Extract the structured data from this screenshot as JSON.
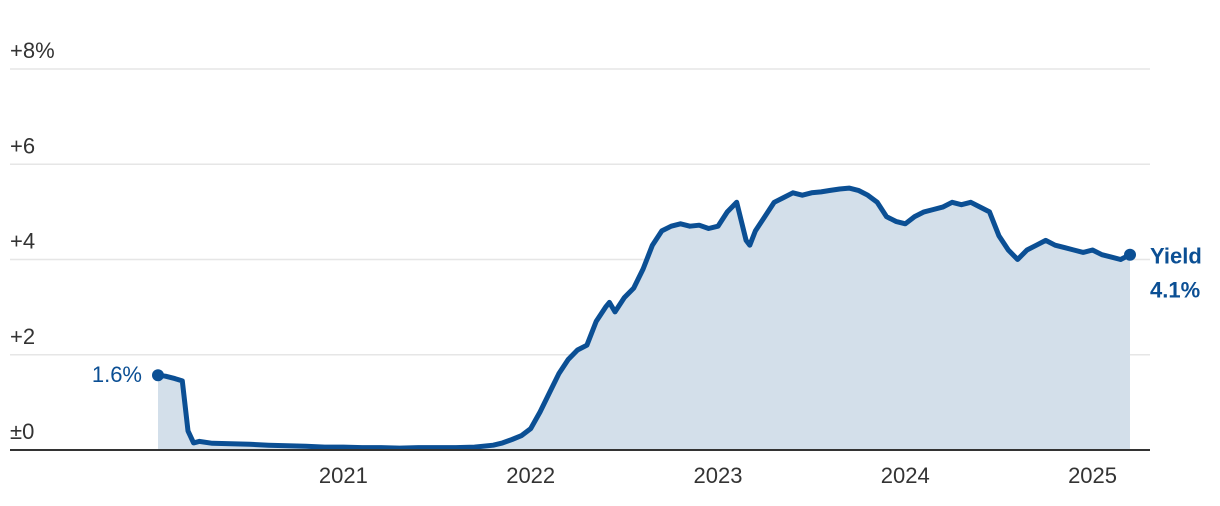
{
  "chart_data": {
    "type": "area",
    "title": "",
    "xlabel": "",
    "ylabel": "",
    "y_unit": "%",
    "ylim": [
      0,
      8
    ],
    "y_ticks": [
      {
        "value": 0,
        "label": "±0"
      },
      {
        "value": 2,
        "label": "+2"
      },
      {
        "value": 4,
        "label": "+4"
      },
      {
        "value": 6,
        "label": "+6"
      },
      {
        "value": 8,
        "label": "+8%"
      }
    ],
    "xlim": [
      2020.0,
      2025.3
    ],
    "x_ticks": [
      {
        "value": 2021,
        "label": "2021"
      },
      {
        "value": 2022,
        "label": "2022"
      },
      {
        "value": 2023,
        "label": "2023"
      },
      {
        "value": 2024,
        "label": "2024"
      },
      {
        "value": 2025,
        "label": "2025"
      }
    ],
    "grid": true,
    "series": [
      {
        "name": "Yield",
        "x": [
          2020.01,
          2020.05,
          2020.1,
          2020.14,
          2020.17,
          2020.2,
          2020.23,
          2020.3,
          2020.4,
          2020.5,
          2020.6,
          2020.7,
          2020.8,
          2020.9,
          2021.0,
          2021.1,
          2021.2,
          2021.3,
          2021.4,
          2021.5,
          2021.6,
          2021.7,
          2021.8,
          2021.85,
          2021.9,
          2021.95,
          2022.0,
          2022.05,
          2022.1,
          2022.15,
          2022.2,
          2022.25,
          2022.3,
          2022.35,
          2022.4,
          2022.42,
          2022.45,
          2022.5,
          2022.55,
          2022.6,
          2022.65,
          2022.7,
          2022.75,
          2022.8,
          2022.85,
          2022.9,
          2022.95,
          2023.0,
          2023.05,
          2023.1,
          2023.15,
          2023.17,
          2023.2,
          2023.25,
          2023.3,
          2023.35,
          2023.4,
          2023.45,
          2023.5,
          2023.55,
          2023.6,
          2023.65,
          2023.7,
          2023.75,
          2023.8,
          2023.85,
          2023.9,
          2023.95,
          2024.0,
          2024.05,
          2024.1,
          2024.15,
          2024.2,
          2024.25,
          2024.3,
          2024.35,
          2024.4,
          2024.45,
          2024.5,
          2024.55,
          2024.6,
          2024.65,
          2024.7,
          2024.75,
          2024.8,
          2024.85,
          2024.9,
          2024.95,
          2025.0,
          2025.05,
          2025.1,
          2025.15,
          2025.2
        ],
        "values": [
          1.57,
          1.55,
          1.5,
          1.45,
          0.4,
          0.15,
          0.18,
          0.14,
          0.13,
          0.12,
          0.1,
          0.09,
          0.08,
          0.06,
          0.06,
          0.05,
          0.05,
          0.04,
          0.05,
          0.05,
          0.05,
          0.06,
          0.1,
          0.15,
          0.22,
          0.3,
          0.45,
          0.8,
          1.2,
          1.6,
          1.9,
          2.1,
          2.2,
          2.7,
          3.0,
          3.1,
          2.9,
          3.2,
          3.4,
          3.8,
          4.3,
          4.6,
          4.7,
          4.75,
          4.7,
          4.72,
          4.65,
          4.7,
          5.0,
          5.2,
          4.4,
          4.3,
          4.6,
          4.9,
          5.2,
          5.3,
          5.4,
          5.35,
          5.4,
          5.42,
          5.45,
          5.48,
          5.5,
          5.45,
          5.35,
          5.2,
          4.9,
          4.8,
          4.75,
          4.9,
          5.0,
          5.05,
          5.1,
          5.2,
          5.15,
          5.2,
          5.1,
          5.0,
          4.5,
          4.2,
          4.0,
          4.2,
          4.3,
          4.4,
          4.3,
          4.25,
          4.2,
          4.15,
          4.2,
          4.1,
          4.05,
          4.0,
          4.1
        ]
      }
    ],
    "start_label": "1.6%",
    "end_label_name": "Yield",
    "end_label_value": "4.1%",
    "colors": {
      "line": "#0b4f94",
      "fill": "#d3dfea",
      "grid": "#e6e6e6",
      "axis": "#333333",
      "label": "#0b4f94"
    }
  }
}
